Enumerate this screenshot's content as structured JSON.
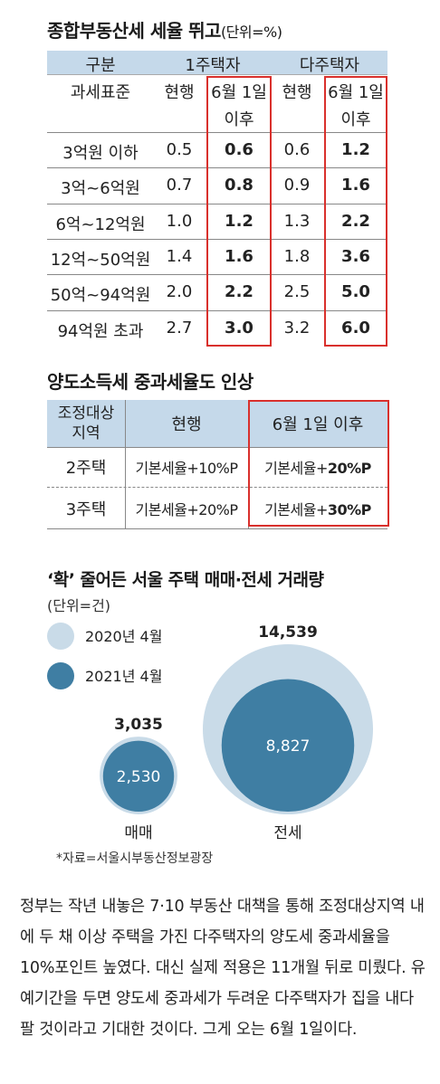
{
  "tax_table": {
    "title": "종합부동산세 세율 뛰고",
    "unit": "(단위=%)",
    "header": {
      "col_group_label": "구분",
      "single_owner": "1주택자",
      "multi_owner": "다주택자",
      "base_label": "과세표준",
      "current": "현행",
      "after_line1": "6월 1일",
      "after_line2": "이후"
    },
    "rows": [
      {
        "bracket": "3억원 이하",
        "single_current": "0.5",
        "single_after": "0.6",
        "multi_current": "0.6",
        "multi_after": "1.2"
      },
      {
        "bracket": "3억~6억원",
        "single_current": "0.7",
        "single_after": "0.8",
        "multi_current": "0.9",
        "multi_after": "1.6"
      },
      {
        "bracket": "6억~12억원",
        "single_current": "1.0",
        "single_after": "1.2",
        "multi_current": "1.3",
        "multi_after": "2.2"
      },
      {
        "bracket": "12억~50억원",
        "single_current": "1.4",
        "single_after": "1.6",
        "multi_current": "1.8",
        "multi_after": "3.6"
      },
      {
        "bracket": "50억~94억원",
        "single_current": "2.0",
        "single_after": "2.2",
        "multi_current": "2.5",
        "multi_after": "5.0"
      },
      {
        "bracket": "94억원 초과",
        "single_current": "2.7",
        "single_after": "3.0",
        "multi_current": "3.2",
        "multi_after": "6.0"
      }
    ],
    "accent_color": "#d9302c",
    "header_color": "#c5d9ea"
  },
  "transfer_table": {
    "title": "양도소득세 중과세율도  인상",
    "header": {
      "region_line1": "조정대상",
      "region_line2": "지역",
      "current": "현행",
      "after": "6월 1일 이후"
    },
    "rows": [
      {
        "type": "2주택",
        "current": "기본세율+10%P",
        "after_prefix": "기본세율+",
        "after_value": "20%P"
      },
      {
        "type": "3주택",
        "current": "기본세율+20%P",
        "after_prefix": "기본세율+",
        "after_value": "30%P"
      }
    ]
  },
  "bubble_chart": {
    "title": "‘확’ 줄어든 서울 주택 매매·전세 거래량",
    "unit": "(단위=건)",
    "legend": [
      {
        "label": "2020년 4월",
        "color": "#c9dbe8"
      },
      {
        "label": "2021년 4월",
        "color": "#3f7ea3"
      }
    ],
    "source": "*자료=서울시부동산정보광장"
  },
  "chart_data": {
    "type": "bubble",
    "title": "‘확’ 줄어든 서울 주택 매매·전세 거래량",
    "unit": "(단위=건)",
    "categories": [
      "매매",
      "전세"
    ],
    "series": [
      {
        "name": "2020년 4월",
        "values": [
          3035,
          14539
        ]
      },
      {
        "name": "2021년 4월",
        "values": [
          2530,
          8827
        ]
      }
    ],
    "value_labels": {
      "2020년 4월": [
        "3,035",
        "14,539"
      ],
      "2021년 4월": [
        "2,530",
        "8,827"
      ]
    }
  },
  "article": {
    "paragraph": "정부는 작년 내놓은 7·10 부동산 대책을 통해 조정대상지역 내에 두 채 이상 주택을 가진 다주택자의 양도세 중과세율을 10%포인트 높였다. 대신 실제 적용은 11개월 뒤로 미뤘다. 유예기간을 두면 양도세 중과세가 두려운 다주택자가 집을 내다팔 것이라고 기대한 것이다. 그게 오는 6월 1일이다."
  }
}
